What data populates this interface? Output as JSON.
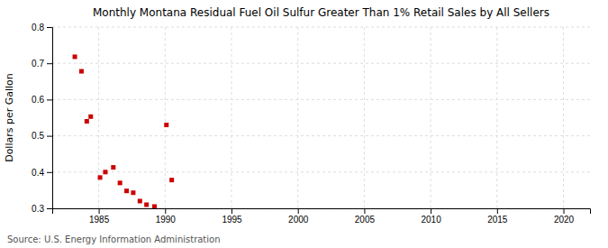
{
  "chart_data": {
    "type": "scatter",
    "title": "Monthly Montana Residual Fuel Oil Sulfur Greater Than 1% Retail Sales by All Sellers",
    "ylabel": "Dollars per Gallon",
    "source": "Source: U.S. Energy Information Administration",
    "color": "#cc0000",
    "marker": "square",
    "grid": true,
    "xlim": [
      1981.5,
      2022
    ],
    "ylim": [
      0.3,
      0.8
    ],
    "xticks": [
      1985,
      1990,
      1995,
      2000,
      2005,
      2010,
      2015,
      2020
    ],
    "yticks": [
      0.3,
      0.4,
      0.5,
      0.6,
      0.7,
      0.8
    ],
    "x": [
      1983.2,
      1983.7,
      1984.1,
      1984.4,
      1985.1,
      1985.5,
      1986.1,
      1986.6,
      1987.1,
      1987.6,
      1988.1,
      1988.6,
      1989.2,
      1990.1,
      1990.5
    ],
    "values": [
      0.718,
      0.678,
      0.54,
      0.553,
      0.385,
      0.4,
      0.413,
      0.37,
      0.348,
      0.343,
      0.32,
      0.31,
      0.305,
      0.53,
      0.378
    ]
  }
}
